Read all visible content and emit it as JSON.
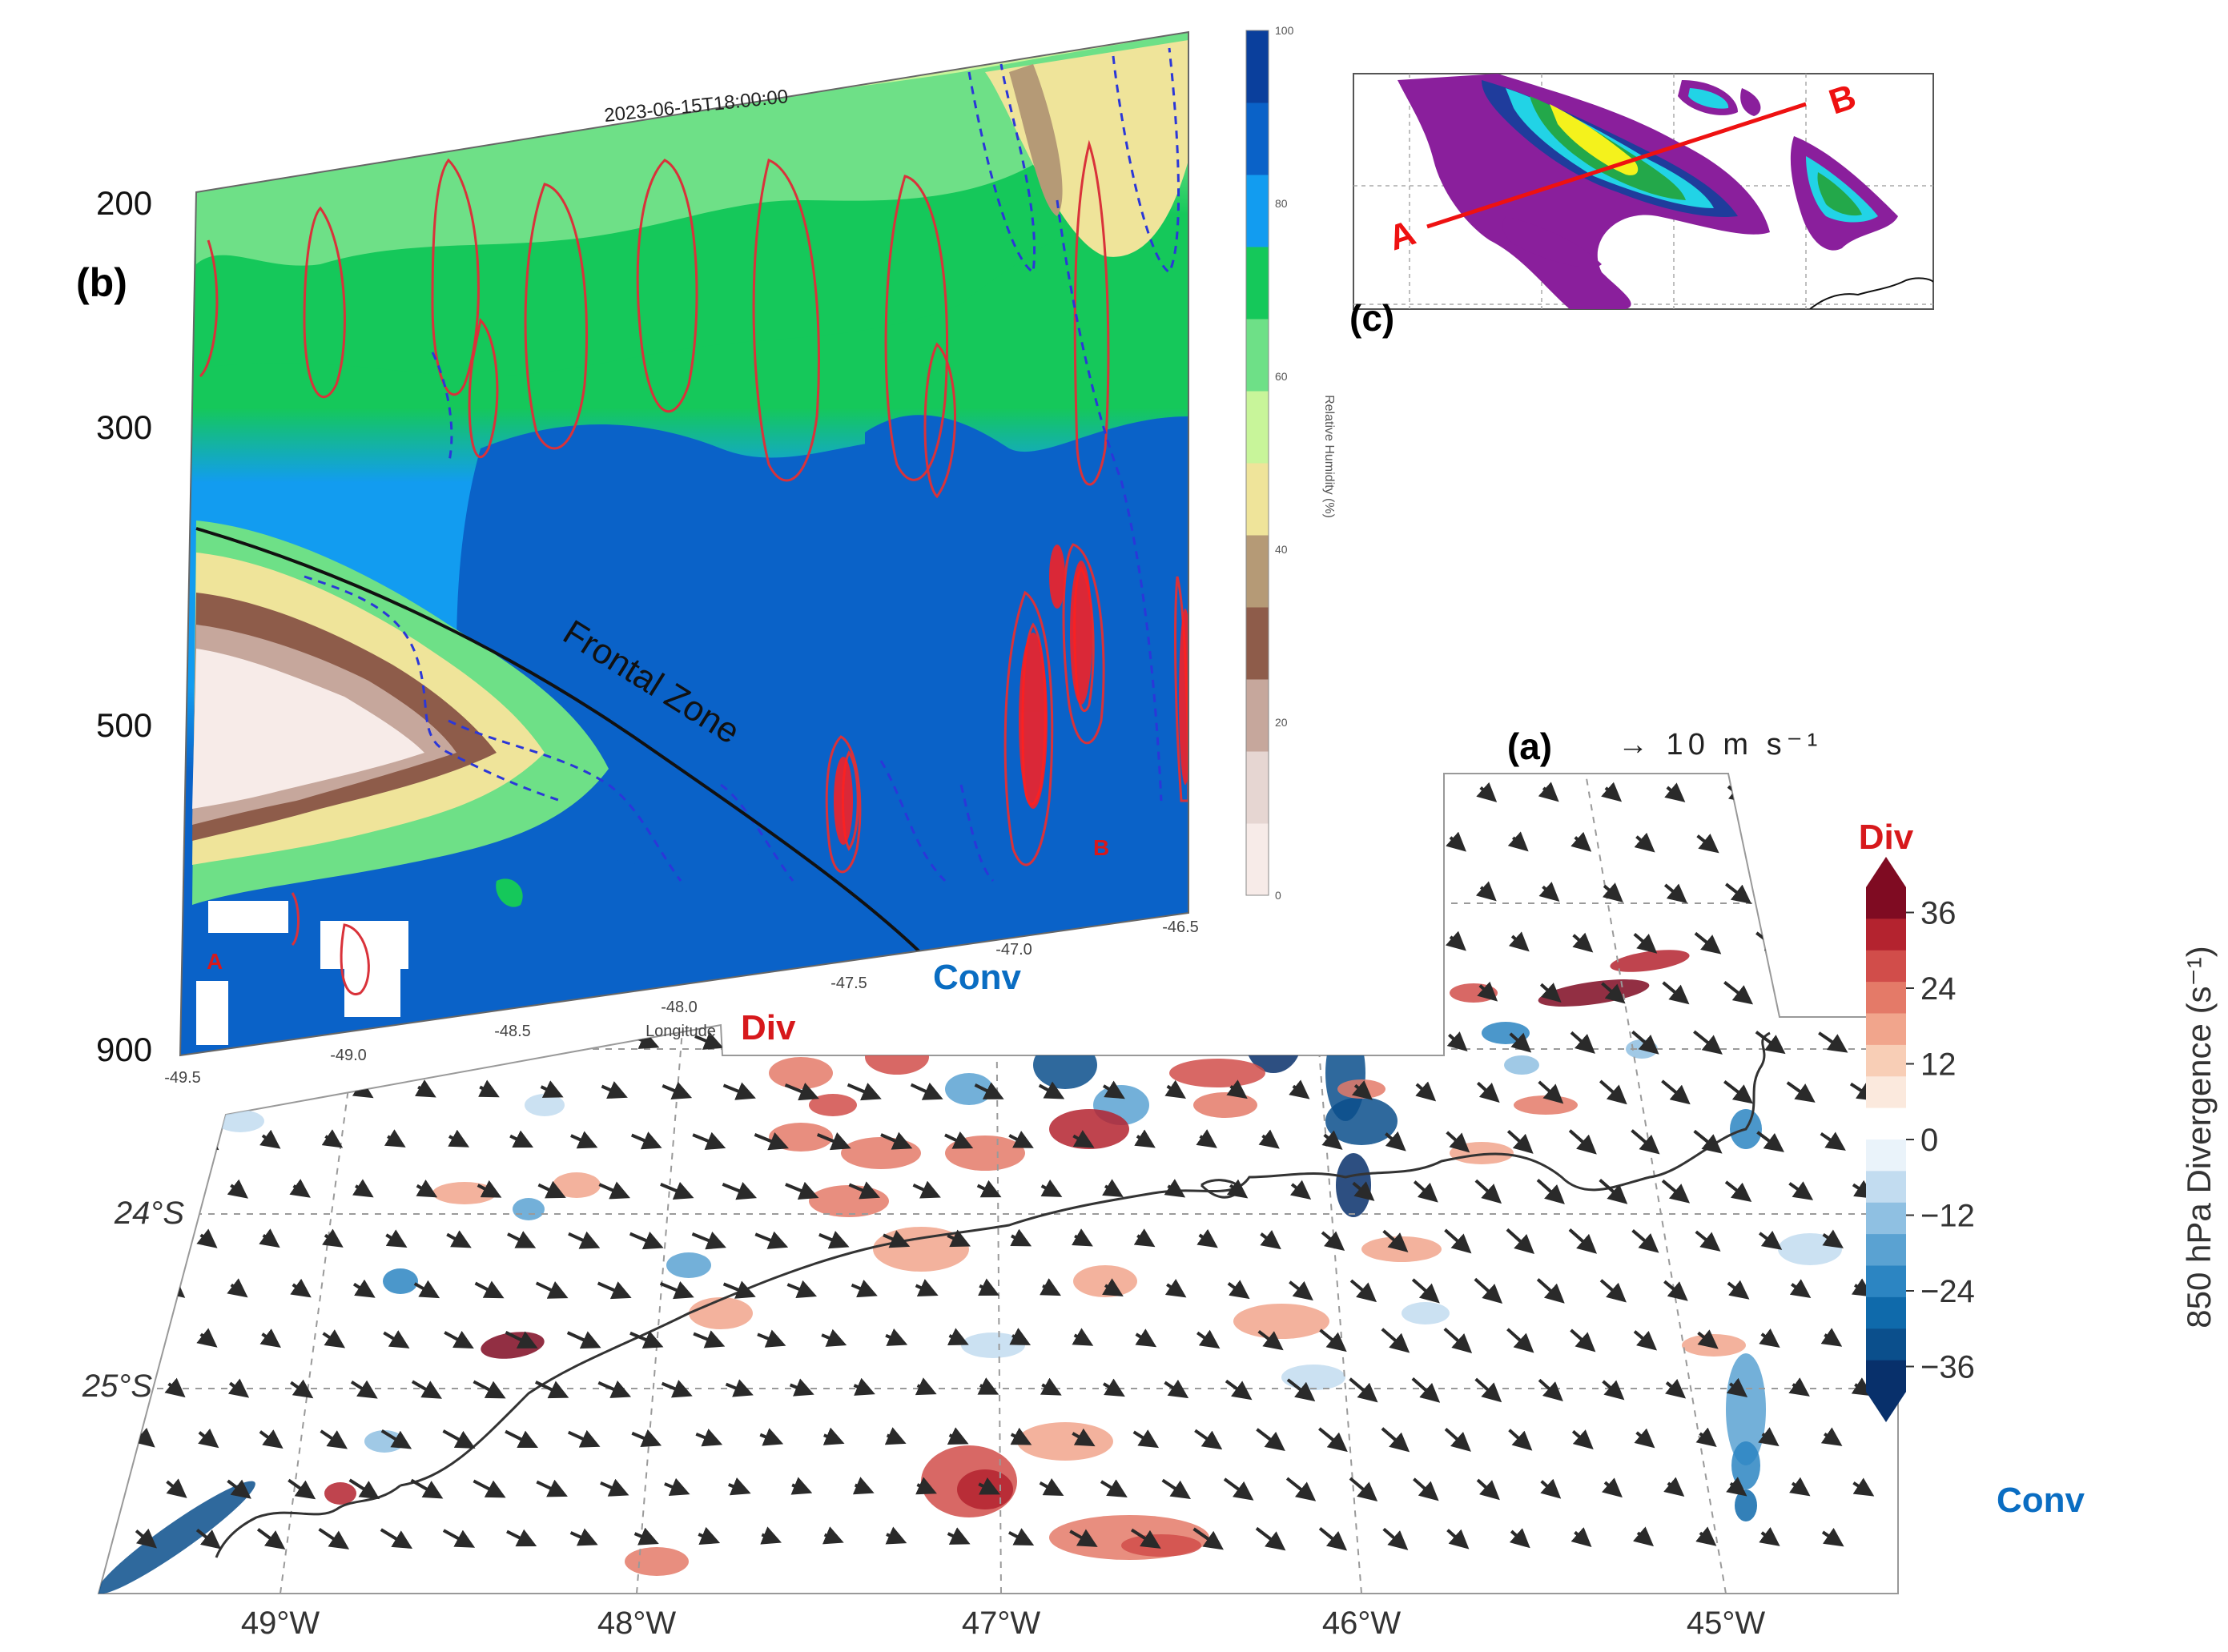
{
  "colors": {
    "div_red": "#d7191c",
    "conv_blue": "#0a6dc2",
    "rh_colors": [
      "#f7ebe8",
      "#e6d6d2",
      "#c6a79c",
      "#8e5c4a",
      "#b59a76",
      "#efe49a",
      "#c8f59a",
      "#6ee087",
      "#15c85a",
      "#129cf0",
      "#0a62c8",
      "#0a3f9c"
    ],
    "div_colors": [
      "#08306b",
      "#0b4f8c",
      "#0f6aab",
      "#2c85c2",
      "#5aa2d2",
      "#8fc0e2",
      "#c2dcf0",
      "#eaf3fa",
      "#ffffff",
      "#fbe9dd",
      "#f8ceb6",
      "#f1a58c",
      "#e47a68",
      "#d14d4a",
      "#b4232f",
      "#7f0b22"
    ]
  },
  "annotations": {
    "label_a": "(a)",
    "label_b": "(b)",
    "label_c": "(c)",
    "frontal_zone": "Frontal Zone",
    "div_cross": "Div",
    "conv_cross": "Conv",
    "div_bar": "Div",
    "conv_bar": "Conv",
    "point_A": "A",
    "point_B": "B",
    "section_A": "A",
    "section_B": "B"
  },
  "chart_data": [
    {
      "panel": "a",
      "type": "heatmap",
      "field": "850 hPa divergence with wind vectors",
      "x_ticks": [
        "49°W",
        "48°W",
        "47°W",
        "46°W",
        "45°W"
      ],
      "y_ticks": [
        "24°S",
        "25°S"
      ],
      "colorbar": {
        "label": "850 hPa Divergence (s⁻¹)",
        "ticks": [
          "36",
          "24",
          "12",
          "0",
          "−12",
          "−24",
          "−36"
        ],
        "tick_values": [
          36,
          24,
          12,
          0,
          -12,
          -24,
          -36
        ],
        "range": [
          -40,
          40
        ]
      },
      "vector_key": "→ 10 m s⁻¹",
      "wind_direction": "northwesterly (arrows pointing southeast)",
      "coastline": true,
      "gridlines": true
    },
    {
      "panel": "b",
      "type": "heatmap",
      "field": "vertical cross-section of relative humidity",
      "title": "2023-06-15T18:00:00",
      "xlabel": "Longitude",
      "x_ticks": [
        "-49.5",
        "-49.0",
        "-48.5",
        "-48.0",
        "-47.5",
        "-47.0",
        "-46.5"
      ],
      "x_range": [
        -49.5,
        -46.5
      ],
      "y_ticks": [
        "200",
        "300",
        "500",
        "900"
      ],
      "y_range": [
        900,
        150
      ],
      "colorbar": {
        "label": "Relative Humidity (%)",
        "ticks": [
          "0",
          "20",
          "40",
          "60",
          "80",
          "100"
        ],
        "tick_values": [
          0,
          20,
          40,
          60,
          80,
          100
        ],
        "range": [
          0,
          100
        ]
      },
      "contours": "red solid (positive) and blue dashed (negative) lines",
      "frontal_zone": true
    },
    {
      "panel": "c",
      "type": "heatmap",
      "field": "plan view inset with cross-section line A–B",
      "section_line": [
        "A",
        "B"
      ]
    }
  ]
}
